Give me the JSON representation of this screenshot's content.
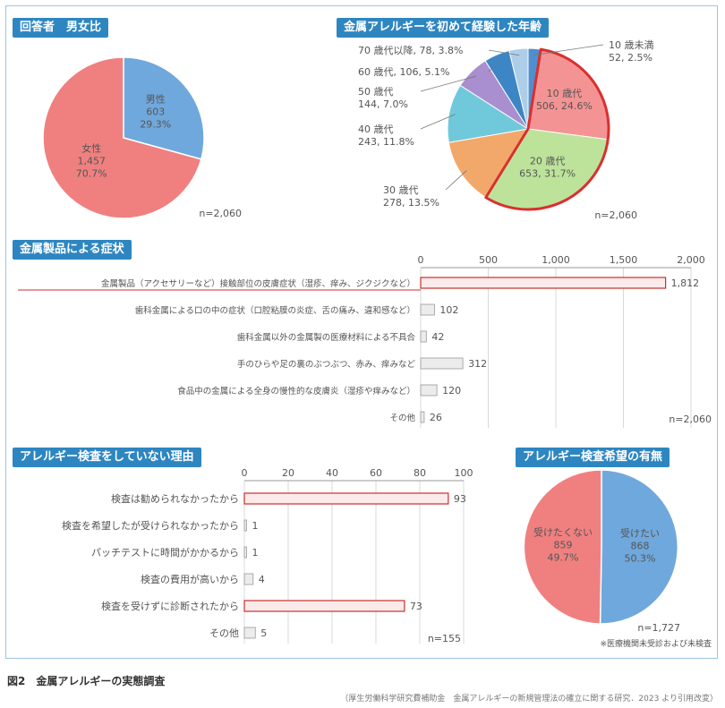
{
  "chart_data": [
    {
      "id": "gender",
      "type": "pie",
      "title": "回答者　男女比",
      "n_label": "n=2,060",
      "colors": [
        "#6fa8dc",
        "#f08080"
      ],
      "slices": [
        {
          "name": "男性",
          "count": "603",
          "pct": "29.3%",
          "value": 603
        },
        {
          "name": "女性",
          "count": "1,457",
          "pct": "70.7%",
          "value": 1457
        }
      ]
    },
    {
      "id": "onset-age",
      "type": "pie",
      "title": "金属アレルギーを初めて経験した年齢",
      "n_label": "n=2,060",
      "highlight_color": "#d9302f",
      "slices": [
        {
          "name": "10 歳未満",
          "count": "52",
          "pct": "2.5%",
          "value": 52,
          "color": "#4f8fd0"
        },
        {
          "name": "10 歳代",
          "count": "506",
          "pct": "24.6%",
          "value": 506,
          "color": "#f49393"
        },
        {
          "name": "20 歳代",
          "count": "653",
          "pct": "31.7%",
          "value": 653,
          "color": "#bde39b"
        },
        {
          "name": "30 歳代",
          "count": "278",
          "pct": "13.5%",
          "value": 278,
          "color": "#f3a86b"
        },
        {
          "name": "40 歳代",
          "count": "243",
          "pct": "11.8%",
          "value": 243,
          "color": "#70c9db"
        },
        {
          "name": "50 歳代",
          "count": "144",
          "pct": "7.0%",
          "value": 144,
          "color": "#a98fcf"
        },
        {
          "name": "60 歳代",
          "count": "106",
          "pct": "5.1%",
          "value": 106,
          "color": "#3d86c6"
        },
        {
          "name": "70 歳代以降",
          "count": "78",
          "pct": "3.8%",
          "value": 78,
          "color": "#aecde9"
        }
      ]
    },
    {
      "id": "symptoms",
      "type": "bar",
      "orientation": "horizontal",
      "title": "金属製品による症状",
      "n_label": "n=2,060",
      "xlim": [
        0,
        2000
      ],
      "ticks": [
        "0",
        "500",
        "1,000",
        "1,500",
        "2,000"
      ],
      "categories": [
        "金属製品（アクセサリーなど）接触部位の皮膚症状（湿疹、痒み、ジクジクなど）",
        "歯科金属による口の中の症状（口腔粘膜の炎症、舌の痛み、違和感など）",
        "歯科金属以外の金属製の医療材料による不具合",
        "手のひらや足の裏のぶつぶつ、赤み、痒みなど",
        "食品中の金属による全身の慢性的な皮膚炎（湿疹や痒みなど）",
        "その他"
      ],
      "values": [
        1812,
        102,
        42,
        312,
        120,
        26
      ],
      "value_labels": [
        "1,812",
        "102",
        "42",
        "312",
        "120",
        "26"
      ],
      "highlight_index": 0
    },
    {
      "id": "no-test-reasons",
      "type": "bar",
      "orientation": "horizontal",
      "title": "アレルギー検査をしていない理由",
      "n_label": "n=155",
      "xlim": [
        0,
        100
      ],
      "ticks": [
        "0",
        "20",
        "40",
        "60",
        "80",
        "100"
      ],
      "categories": [
        "検査は勧められなかったから",
        "検査を希望したが受けられなかったから",
        "パッチテストに時間がかかるから",
        "検査の費用が高いから",
        "検査を受けずに診断されたから",
        "その他"
      ],
      "values": [
        93,
        1,
        1,
        4,
        73,
        5
      ],
      "value_labels": [
        "93",
        "1",
        "1",
        "4",
        "73",
        "5"
      ],
      "highlight_indices": [
        0,
        4
      ]
    },
    {
      "id": "test-wish",
      "type": "pie",
      "title": "アレルギー検査希望の有無",
      "n_label": "n=1,727",
      "note": "※医療機関未受診および未検査",
      "colors": [
        "#6fa8dc",
        "#f08080"
      ],
      "slices": [
        {
          "name": "受けたい",
          "count": "868",
          "pct": "50.3%",
          "value": 868
        },
        {
          "name": "受けたくない",
          "count": "859",
          "pct": "49.7%",
          "value": 859
        }
      ]
    }
  ],
  "caption": "図2　金属アレルギーの実態調査",
  "source": "（厚生労働科学研究費補助金　金属アレルギーの新規管理法の確立に関する研究．2023 より引用改変）"
}
